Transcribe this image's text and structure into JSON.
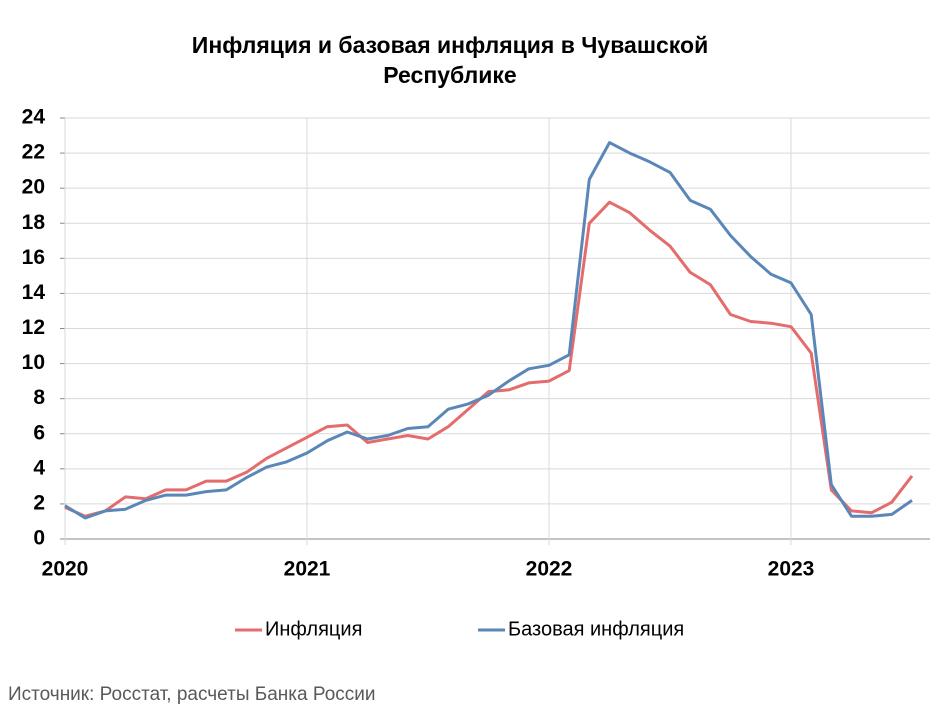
{
  "chart_data": {
    "type": "line",
    "title": "Инфляция и базовая инфляция в Чувашской Республике",
    "source": "Источник: Росстат, расчеты Банка России",
    "categories": [
      "2020",
      null,
      null,
      null,
      null,
      null,
      null,
      null,
      null,
      null,
      null,
      null,
      "2021",
      null,
      null,
      null,
      null,
      null,
      null,
      null,
      null,
      null,
      null,
      null,
      "2022",
      null,
      null,
      null,
      null,
      null,
      null,
      null,
      null,
      null,
      null,
      null,
      "2023",
      null,
      null,
      null,
      null,
      null,
      null
    ],
    "series": [
      {
        "name": "Инфляция",
        "color": "#e46c6c",
        "values": [
          1.8,
          1.3,
          1.6,
          2.4,
          2.3,
          2.8,
          2.8,
          3.3,
          3.3,
          3.8,
          4.6,
          5.2,
          5.8,
          6.4,
          6.5,
          5.5,
          5.7,
          5.9,
          5.7,
          6.4,
          7.4,
          8.4,
          8.5,
          8.9,
          9.0,
          9.6,
          18.0,
          19.2,
          18.6,
          17.6,
          16.7,
          15.2,
          14.5,
          12.8,
          12.4,
          12.3,
          12.1,
          10.6,
          2.8,
          1.6,
          1.5,
          2.1,
          3.6
        ]
      },
      {
        "name": "Базовая инфляция",
        "color": "#5b87b8",
        "values": [
          1.9,
          1.2,
          1.6,
          1.7,
          2.2,
          2.5,
          2.5,
          2.7,
          2.8,
          3.5,
          4.1,
          4.4,
          4.9,
          5.6,
          6.1,
          5.7,
          5.9,
          6.3,
          6.4,
          7.4,
          7.7,
          8.2,
          9.0,
          9.7,
          9.9,
          10.5,
          20.5,
          22.6,
          22.0,
          21.5,
          20.9,
          19.3,
          18.8,
          17.3,
          16.1,
          15.1,
          14.6,
          12.8,
          3.1,
          1.3,
          1.3,
          1.4,
          2.2
        ]
      }
    ],
    "ylim": [
      0,
      24
    ],
    "yticks": [
      0,
      2,
      4,
      6,
      8,
      10,
      12,
      14,
      16,
      18,
      20,
      22,
      24
    ],
    "grid": true,
    "legend": "bottom"
  }
}
